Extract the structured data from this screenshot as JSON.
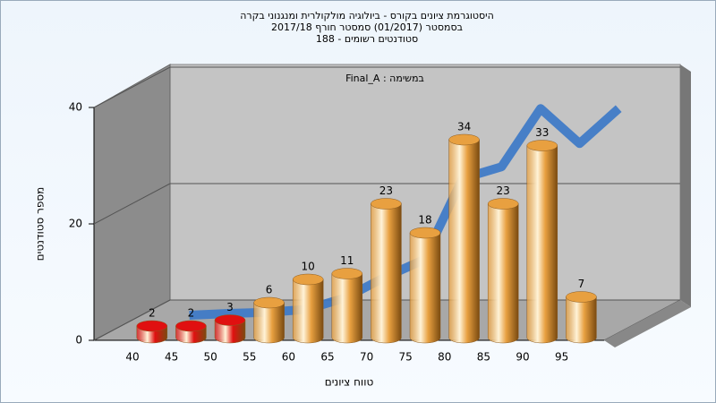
{
  "chart_data": {
    "type": "bar",
    "title": [
      "היסטוגרמת ציונים בקורס - ביולוגיה מולקולרית ומנגנוני בקרה",
      "בסמסטר  (01/2017)  סמסטר חורף 2017/18",
      "סטודנטים רשומים - 188"
    ],
    "annotation": "Final_A : במשימה",
    "x_label": "טווח ציונים",
    "y_label": "מספר סטודנטים",
    "categories": [
      "40",
      "45",
      "50",
      "55",
      "60",
      "65",
      "70",
      "75",
      "80",
      "85",
      "90",
      "95"
    ],
    "values": [
      2,
      2,
      3,
      6,
      10,
      11,
      23,
      18,
      34,
      23,
      33,
      7
    ],
    "colors": [
      "#e01010",
      "#e01010",
      "#e01010",
      "#e8a040",
      "#e8a040",
      "#e8a040",
      "#e8a040",
      "#e8a040",
      "#e8a040",
      "#e8a040",
      "#e8a040",
      "#e8a040"
    ],
    "line_values": [
      0.5,
      0.8,
      1,
      1.5,
      3.5,
      7,
      10,
      24,
      26,
      36,
      30,
      36
    ],
    "line_color": "#3a78c8",
    "ylim": [
      0,
      40
    ],
    "yticks": [
      0,
      20,
      40
    ],
    "grid": true
  }
}
